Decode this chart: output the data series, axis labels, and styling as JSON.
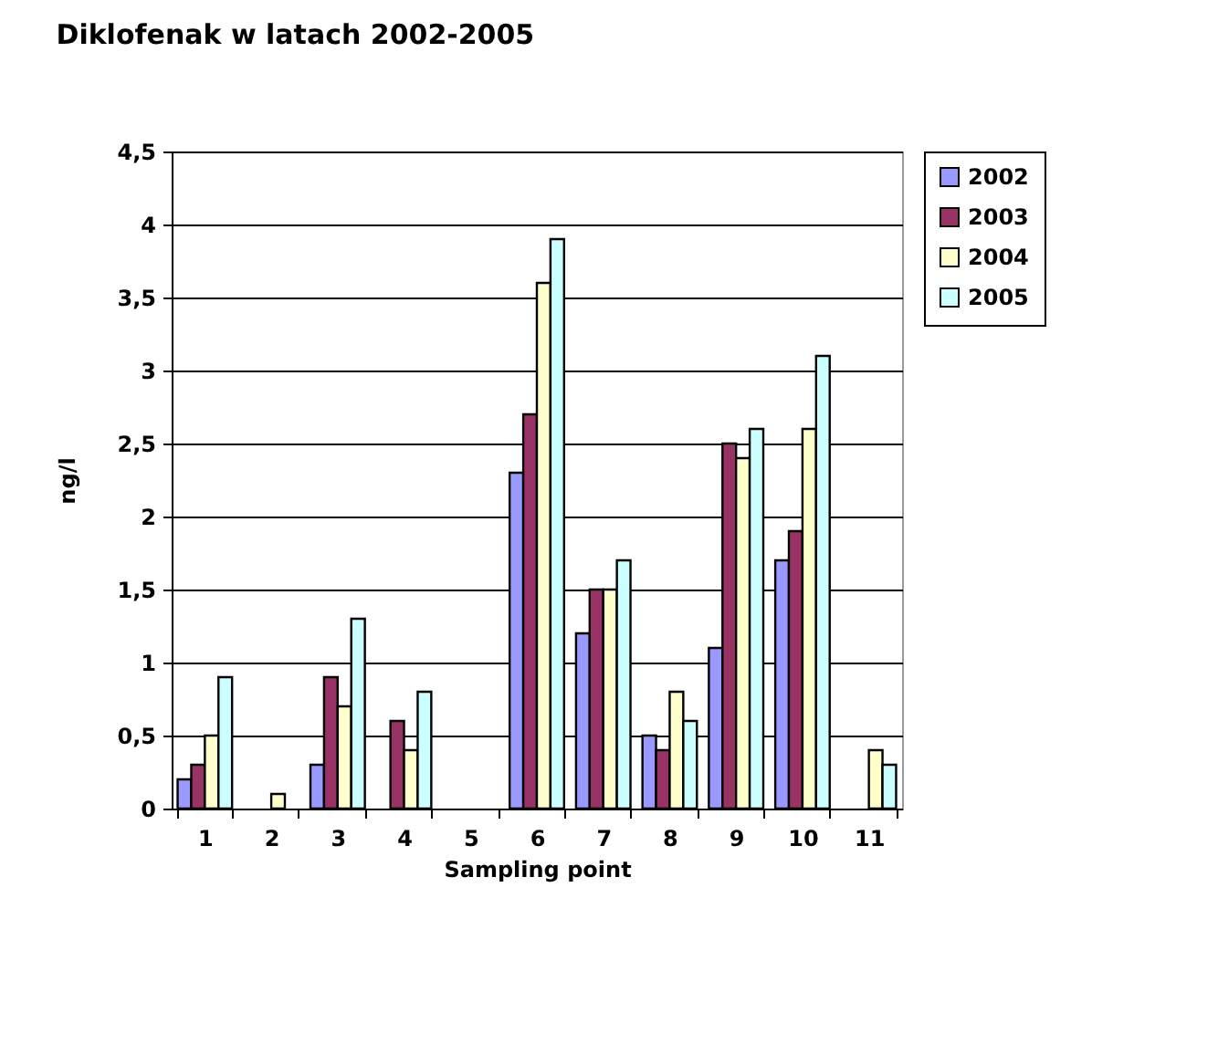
{
  "chart_data": {
    "type": "bar",
    "title": "Diklofenak w latach 2002-2005",
    "xlabel": "Sampling point",
    "ylabel": "ng/l",
    "categories": [
      "1",
      "2",
      "3",
      "4",
      "5",
      "6",
      "7",
      "8",
      "9",
      "10",
      "11"
    ],
    "series": [
      {
        "name": "2002",
        "color": "#9999ff",
        "values": [
          0.2,
          null,
          0.3,
          null,
          null,
          2.3,
          1.2,
          0.5,
          1.1,
          1.7,
          null
        ]
      },
      {
        "name": "2003",
        "color": "#993366",
        "values": [
          0.3,
          null,
          0.9,
          0.6,
          null,
          2.7,
          1.5,
          0.4,
          2.5,
          1.9,
          null
        ]
      },
      {
        "name": "2004",
        "color": "#ffffcc",
        "values": [
          0.5,
          0.1,
          0.7,
          0.4,
          null,
          3.6,
          1.5,
          0.8,
          2.4,
          2.6,
          0.4
        ]
      },
      {
        "name": "2005",
        "color": "#ccffff",
        "values": [
          0.9,
          null,
          1.3,
          0.8,
          null,
          3.9,
          1.7,
          0.6,
          2.6,
          3.1,
          0.3
        ]
      }
    ],
    "ylim": [
      0,
      4.5
    ],
    "yticks": [
      0,
      {
        "value": 0.5,
        "label": "0,5"
      },
      1,
      {
        "value": 1.5,
        "label": "1,5"
      },
      2,
      {
        "value": 2.5,
        "label": "2,5"
      },
      3,
      {
        "value": 3.5,
        "label": "3,5"
      },
      4,
      {
        "value": 4.5,
        "label": "4,5"
      }
    ],
    "grid": "y",
    "legend": "right"
  }
}
